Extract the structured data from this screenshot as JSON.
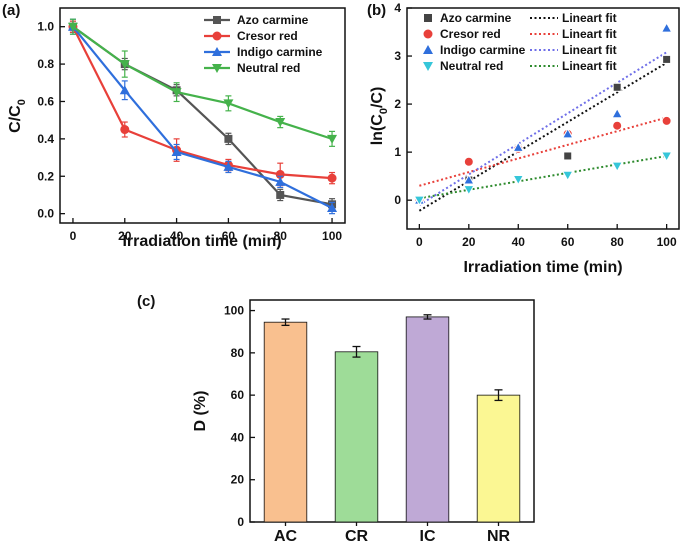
{
  "chart_data": [
    {
      "panel": "(a)",
      "type": "line",
      "xlabel": "Irradiation time (min)",
      "ylabel": "C/C",
      "ylabel_sub": "0",
      "xlim": [
        -5,
        105
      ],
      "ylim": [
        -0.05,
        1.1
      ],
      "xticks": [
        0,
        20,
        40,
        60,
        80,
        100
      ],
      "yticks": [
        0.0,
        0.2,
        0.4,
        0.6,
        0.8,
        1.0
      ],
      "ytick_labels": [
        "0.0",
        "0.2",
        "0.4",
        "0.6",
        "0.8",
        "1.0"
      ],
      "x": [
        0,
        20,
        40,
        60,
        80,
        100
      ],
      "legend_position": "top-right",
      "series": [
        {
          "name": "Azo carmine",
          "color": "#555555",
          "marker": "square",
          "values": [
            1.0,
            0.8,
            0.66,
            0.4,
            0.1,
            0.05
          ],
          "errors": [
            0.03,
            0.03,
            0.03,
            0.03,
            0.03,
            0.03
          ]
        },
        {
          "name": "Cresor red",
          "color": "#e8403a",
          "marker": "circle",
          "values": [
            1.0,
            0.45,
            0.34,
            0.26,
            0.21,
            0.19
          ],
          "errors": [
            0.03,
            0.04,
            0.06,
            0.03,
            0.06,
            0.03
          ]
        },
        {
          "name": "Indigo carmine",
          "color": "#2f6fdc",
          "marker": "triangle-up",
          "values": [
            1.0,
            0.66,
            0.33,
            0.25,
            0.17,
            0.03
          ],
          "errors": [
            0.04,
            0.05,
            0.04,
            0.03,
            0.03,
            0.03
          ]
        },
        {
          "name": "Neutral red",
          "color": "#45b24b",
          "marker": "triangle-down",
          "values": [
            1.0,
            0.8,
            0.65,
            0.59,
            0.49,
            0.4
          ],
          "errors": [
            0.04,
            0.07,
            0.05,
            0.04,
            0.03,
            0.04
          ]
        }
      ]
    },
    {
      "panel": "(b)",
      "type": "scatter",
      "xlabel": "Irradiation time (min)",
      "ylabel_prefix": "ln(C",
      "ylabel_sub": "0",
      "ylabel_suffix": "/C)",
      "xlim": [
        -5,
        105
      ],
      "ylim": [
        -0.6,
        4
      ],
      "xticks": [
        0,
        20,
        40,
        60,
        80,
        100
      ],
      "yticks": [
        0,
        1,
        2,
        3,
        4
      ],
      "x": [
        0,
        20,
        40,
        60,
        80,
        100
      ],
      "legend_position": "top-left",
      "fit_label": "Lineart fit",
      "series": [
        {
          "name": "Azo carmine",
          "color": "#444444",
          "marker": "square",
          "values": [
            0.0,
            0.42,
            1.08,
            0.92,
            2.35,
            2.93
          ],
          "fit": [
            -0.22,
            2.86
          ],
          "fit_color": "#111111"
        },
        {
          "name": "Cresor red",
          "color": "#e8403a",
          "marker": "circle",
          "values": [
            0.0,
            0.8,
            1.07,
            1.38,
            1.55,
            1.65
          ],
          "fit": [
            0.3,
            1.72
          ],
          "fit_color": "#e8403a"
        },
        {
          "name": "Indigo carmine",
          "color": "#2f6fdc",
          "marker": "triangle-up",
          "values": [
            0.0,
            0.42,
            1.1,
            1.38,
            1.8,
            3.58
          ],
          "fit": [
            -0.1,
            3.08
          ],
          "fit_color": "#6f6fe8"
        },
        {
          "name": "Neutral red",
          "color": "#36c6d9",
          "marker": "triangle-down",
          "values": [
            0.0,
            0.22,
            0.43,
            0.52,
            0.71,
            0.92
          ],
          "fit": [
            0.04,
            0.92
          ],
          "fit_color": "#2e8b2e"
        }
      ]
    },
    {
      "panel": "(c)",
      "type": "bar",
      "xlabel": "",
      "ylabel": "D (%)",
      "ylim": [
        0,
        105
      ],
      "yticks": [
        0,
        20,
        40,
        60,
        80,
        100
      ],
      "categories": [
        "AC",
        "CR",
        "IC",
        "NR"
      ],
      "values": [
        94.5,
        80.5,
        97.0,
        60.0
      ],
      "errors": [
        1.5,
        2.5,
        1.0,
        2.5
      ],
      "colors": [
        "#f9c08f",
        "#9edc98",
        "#bfa9d6",
        "#fbf793"
      ]
    }
  ]
}
